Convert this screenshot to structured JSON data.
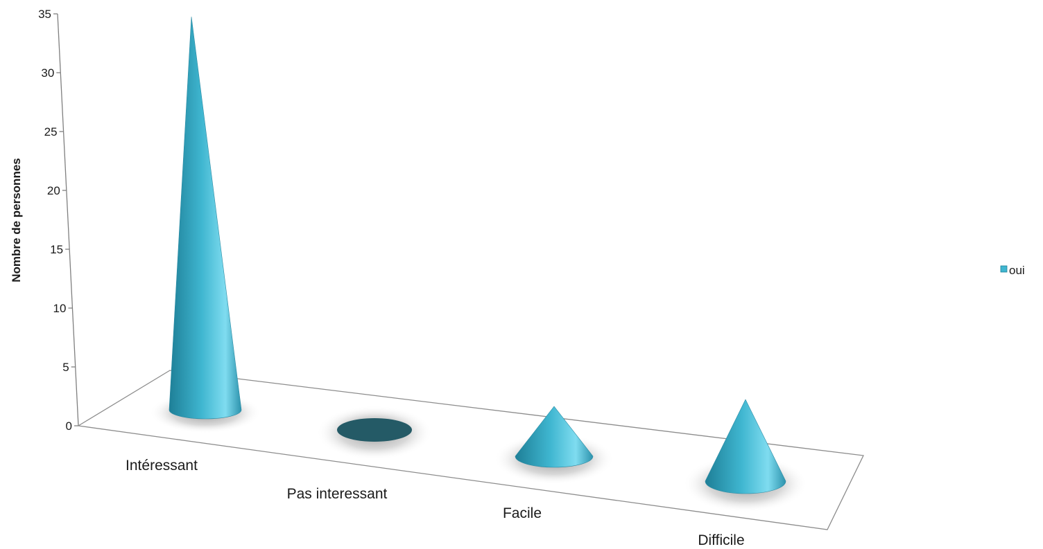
{
  "chart_data": {
    "type": "bar",
    "shape": "cone-3d",
    "categories": [
      "Intéressant",
      "Pas interessant",
      "Facile",
      "Difficile"
    ],
    "series": [
      {
        "name": "oui",
        "values": [
          34,
          0,
          2,
          2
        ]
      }
    ],
    "ylabel": "Nombre de personnes",
    "ylim": [
      0,
      35
    ],
    "yticks": [
      0,
      5,
      10,
      15,
      20,
      25,
      30,
      35
    ],
    "grid": false,
    "legend": "right",
    "colors": {
      "cone_light": "#7fdcf0",
      "cone_mid": "#3fb6d0",
      "cone_dark": "#1e7f97",
      "empty_base": "#245a66",
      "shadow": "#9a9a9a"
    }
  }
}
